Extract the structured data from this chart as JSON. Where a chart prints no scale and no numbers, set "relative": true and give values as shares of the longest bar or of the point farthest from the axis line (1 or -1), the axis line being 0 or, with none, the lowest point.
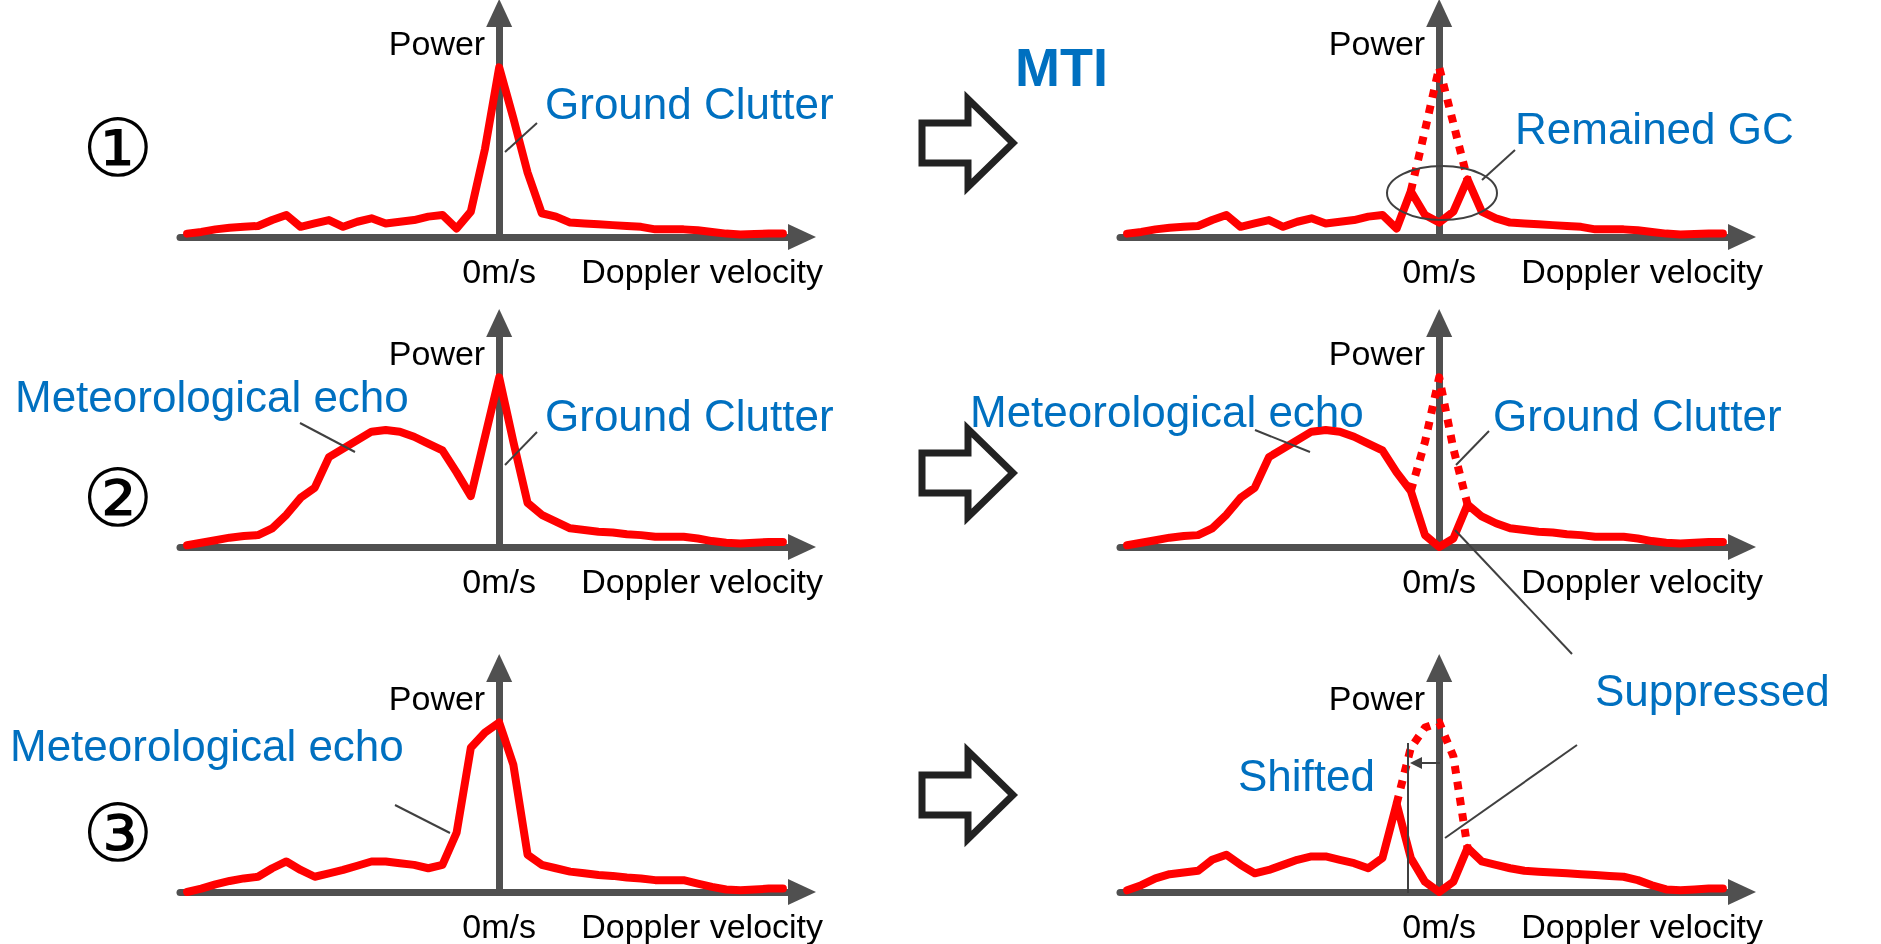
{
  "chart_data": [
    {
      "type": "line",
      "relative": true,
      "title": "①",
      "ylabel": "Power",
      "xlabel": "Doppler velocity",
      "categories": [
        null,
        null,
        null,
        null,
        null,
        null,
        null,
        null,
        null,
        null,
        null,
        null,
        null,
        null,
        null,
        null,
        null,
        null,
        null,
        null,
        null,
        null,
        null,
        null,
        null,
        null,
        null,
        null,
        null,
        null,
        null,
        null,
        null,
        null,
        null,
        null,
        null,
        null,
        null,
        null,
        null,
        null,
        null
      ],
      "series": [
        {
          "color": "#ff0000",
          "values": [
            0.02,
            0.03,
            0.045,
            0.055,
            0.06,
            0.065,
            0.1,
            0.13,
            0.06,
            0.08,
            0.1,
            0.06,
            0.09,
            0.11,
            0.08,
            0.09,
            0.1,
            0.12,
            0.13,
            0.05,
            0.15,
            0.52,
            1.0,
            0.7,
            0.38,
            0.14,
            0.12,
            0.085,
            0.08,
            0.075,
            0.07,
            0.065,
            0.06,
            0.045,
            0.045,
            0.045,
            0.04,
            0.03,
            0.02,
            0.015,
            0.018,
            0.02,
            0.02
          ]
        }
      ],
      "annotations": [
        "0m/s",
        "Ground Clutter"
      ]
    },
    {
      "type": "line",
      "relative": true,
      "title": "MTI",
      "ylabel": "Power",
      "xlabel": "Doppler velocity",
      "categories": [
        null,
        null,
        null,
        null,
        null,
        null,
        null,
        null,
        null,
        null,
        null,
        null,
        null,
        null,
        null,
        null,
        null,
        null,
        null,
        null,
        null,
        null,
        null,
        null,
        null,
        null,
        null,
        null,
        null,
        null,
        null,
        null,
        null,
        null,
        null,
        null,
        null,
        null,
        null,
        null,
        null,
        null,
        null
      ],
      "series": [
        {
          "color": "#ff0000",
          "line_style": "dotted",
          "values": [
            null,
            null,
            null,
            null,
            null,
            null,
            null,
            null,
            null,
            null,
            null,
            null,
            null,
            null,
            null,
            null,
            null,
            null,
            null,
            null,
            0.27,
            0.63,
            1.0,
            0.67,
            0.34,
            null,
            null,
            null,
            null,
            null,
            null,
            null,
            null,
            null,
            null,
            null,
            null,
            null,
            null,
            null,
            null,
            null,
            null
          ]
        },
        {
          "color": "#ff0000",
          "line_style": "solid",
          "values": [
            0.02,
            0.03,
            0.045,
            0.055,
            0.06,
            0.065,
            0.1,
            0.13,
            0.06,
            0.08,
            0.1,
            0.06,
            0.09,
            0.11,
            0.08,
            0.09,
            0.1,
            0.12,
            0.13,
            0.05,
            0.27,
            0.13,
            0.085,
            0.15,
            0.34,
            0.15,
            0.11,
            0.085,
            0.08,
            0.075,
            0.07,
            0.065,
            0.06,
            0.045,
            0.045,
            0.045,
            0.04,
            0.03,
            0.02,
            0.015,
            0.018,
            0.02,
            0.02
          ]
        }
      ],
      "annotations": [
        "0m/s",
        "Remained GC"
      ]
    },
    {
      "type": "line",
      "relative": true,
      "title": "②",
      "ylabel": "Power",
      "xlabel": "Doppler velocity",
      "categories": [
        null,
        null,
        null,
        null,
        null,
        null,
        null,
        null,
        null,
        null,
        null,
        null,
        null,
        null,
        null,
        null,
        null,
        null,
        null,
        null,
        null,
        null,
        null,
        null,
        null,
        null,
        null,
        null,
        null,
        null,
        null,
        null,
        null,
        null,
        null,
        null,
        null,
        null,
        null,
        null,
        null,
        null,
        null
      ],
      "series": [
        {
          "color": "#ff0000",
          "values": [
            0.01,
            0.025,
            0.04,
            0.055,
            0.065,
            0.07,
            0.11,
            0.19,
            0.29,
            0.35,
            0.53,
            0.58,
            0.63,
            0.68,
            0.69,
            0.68,
            0.65,
            0.61,
            0.57,
            0.44,
            0.3,
            0.65,
            1.0,
            0.62,
            0.26,
            0.19,
            0.15,
            0.11,
            0.1,
            0.09,
            0.085,
            0.075,
            0.07,
            0.06,
            0.06,
            0.06,
            0.05,
            0.035,
            0.025,
            0.02,
            0.025,
            0.03,
            0.03
          ]
        }
      ],
      "annotations": [
        "0m/s",
        "Meteorological echo",
        "Ground Clutter"
      ]
    },
    {
      "type": "line",
      "relative": true,
      "ylabel": "Power",
      "xlabel": "Doppler velocity",
      "categories": [
        null,
        null,
        null,
        null,
        null,
        null,
        null,
        null,
        null,
        null,
        null,
        null,
        null,
        null,
        null,
        null,
        null,
        null,
        null,
        null,
        null,
        null,
        null,
        null,
        null,
        null,
        null,
        null,
        null,
        null,
        null,
        null,
        null,
        null,
        null,
        null,
        null,
        null,
        null,
        null,
        null,
        null,
        null
      ],
      "series": [
        {
          "color": "#ff0000",
          "line_style": "dotted",
          "values": [
            null,
            null,
            null,
            null,
            null,
            null,
            null,
            null,
            null,
            null,
            null,
            null,
            null,
            null,
            null,
            null,
            null,
            null,
            null,
            null,
            0.33,
            0.62,
            1.0,
            0.58,
            0.25,
            null,
            null,
            null,
            null,
            null,
            null,
            null,
            null,
            null,
            null,
            null,
            null,
            null,
            null,
            null,
            null,
            null,
            null
          ]
        },
        {
          "color": "#ff0000",
          "line_style": "solid",
          "values": [
            0.01,
            0.025,
            0.04,
            0.055,
            0.065,
            0.07,
            0.11,
            0.19,
            0.29,
            0.35,
            0.53,
            0.58,
            0.63,
            0.68,
            0.69,
            0.68,
            0.65,
            0.61,
            0.57,
            0.44,
            0.33,
            0.07,
            0.0,
            0.05,
            0.25,
            0.18,
            0.14,
            0.11,
            0.1,
            0.09,
            0.085,
            0.075,
            0.07,
            0.06,
            0.06,
            0.06,
            0.05,
            0.035,
            0.025,
            0.02,
            0.025,
            0.03,
            0.03
          ]
        }
      ],
      "annotations": [
        "0m/s",
        "Meteorological echo",
        "Ground Clutter"
      ]
    },
    {
      "type": "line",
      "relative": true,
      "title": "③",
      "ylabel": "Power",
      "xlabel": "Doppler velocity",
      "categories": [
        null,
        null,
        null,
        null,
        null,
        null,
        null,
        null,
        null,
        null,
        null,
        null,
        null,
        null,
        null,
        null,
        null,
        null,
        null,
        null,
        null,
        null,
        null,
        null,
        null,
        null,
        null,
        null,
        null,
        null,
        null,
        null,
        null,
        null,
        null,
        null,
        null,
        null,
        null,
        null,
        null,
        null,
        null
      ],
      "series": [
        {
          "color": "#ff0000",
          "values": [
            0.0,
            0.02,
            0.045,
            0.065,
            0.08,
            0.09,
            0.14,
            0.18,
            0.13,
            0.09,
            0.11,
            0.13,
            0.155,
            0.18,
            0.18,
            0.17,
            0.16,
            0.14,
            0.16,
            0.35,
            0.85,
            0.94,
            1.0,
            0.75,
            0.22,
            0.16,
            0.14,
            0.12,
            0.11,
            0.1,
            0.095,
            0.085,
            0.08,
            0.07,
            0.07,
            0.07,
            0.05,
            0.03,
            0.015,
            0.01,
            0.015,
            0.02,
            0.02
          ]
        }
      ],
      "annotations": [
        "0m/s",
        "Meteorological echo"
      ]
    },
    {
      "type": "line",
      "relative": true,
      "ylabel": "Power",
      "xlabel": "Doppler velocity",
      "categories": [
        null,
        null,
        null,
        null,
        null,
        null,
        null,
        null,
        null,
        null,
        null,
        null,
        null,
        null,
        null,
        null,
        null,
        null,
        null,
        null,
        null,
        null,
        null,
        null,
        null,
        null,
        null,
        null,
        null,
        null,
        null,
        null,
        null,
        null,
        null,
        null,
        null,
        null,
        null,
        null,
        null,
        null,
        null
      ],
      "series": [
        {
          "color": "#ff0000",
          "line_style": "dotted",
          "values": [
            null,
            null,
            null,
            null,
            null,
            null,
            null,
            null,
            null,
            null,
            null,
            null,
            null,
            null,
            null,
            null,
            null,
            null,
            null,
            0.52,
            0.85,
            0.97,
            1.0,
            0.8,
            0.26,
            null,
            null,
            null,
            null,
            null,
            null,
            null,
            null,
            null,
            null,
            null,
            null,
            null,
            null,
            null,
            null,
            null,
            null
          ]
        },
        {
          "color": "#ff0000",
          "line_style": "solid",
          "values": [
            0.01,
            0.04,
            0.08,
            0.105,
            0.115,
            0.125,
            0.19,
            0.22,
            0.16,
            0.11,
            0.13,
            0.16,
            0.19,
            0.21,
            0.21,
            0.19,
            0.17,
            0.14,
            0.2,
            0.52,
            0.2,
            0.06,
            0.0,
            0.06,
            0.26,
            0.18,
            0.16,
            0.14,
            0.125,
            0.12,
            0.115,
            0.11,
            0.105,
            0.1,
            0.095,
            0.09,
            0.07,
            0.04,
            0.015,
            0.01,
            0.015,
            0.02,
            0.02
          ]
        }
      ],
      "annotations": [
        "0m/s",
        "Suppressed",
        "Shifted"
      ]
    }
  ]
}
